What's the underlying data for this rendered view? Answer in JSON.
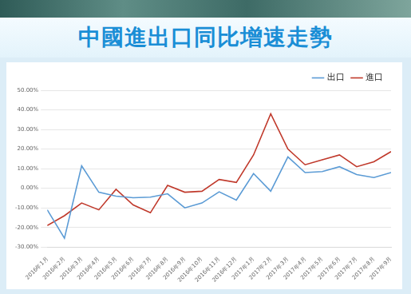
{
  "chart_data": {
    "type": "line",
    "title": "中國進出口同比增速走勢",
    "categories": [
      "2016年1月",
      "2016年2月",
      "2016年3月",
      "2016年4月",
      "2016年5月",
      "2016年6月",
      "2016年7月",
      "2016年8月",
      "2016年9月",
      "2016年10月",
      "2016年11月",
      "2016年12月",
      "2017年1月",
      "2017年2月",
      "2017年3月",
      "2017年4月",
      "2017年5月",
      "2017年6月",
      "2017年7月",
      "2017年8月",
      "2017年9月"
    ],
    "series": [
      {
        "name": "出口",
        "color": "#5b9bd5",
        "values": [
          -11,
          -25.5,
          11.5,
          -2,
          -4,
          -4.8,
          -4.5,
          -2.8,
          -10,
          -7.5,
          -1.8,
          -6,
          7.5,
          -1.5,
          16,
          8,
          8.5,
          11,
          7,
          5.5,
          8
        ]
      },
      {
        "name": "進口",
        "color": "#c0392b",
        "values": [
          -19,
          -14,
          -7.5,
          -11,
          -0.5,
          -8.5,
          -12.5,
          1.5,
          -2,
          -1.5,
          4.5,
          3,
          17,
          38,
          20,
          12,
          14.5,
          17,
          11,
          13.5,
          18.7
        ]
      }
    ],
    "ylim": [
      -30,
      50
    ],
    "yticks": [
      {
        "value": -30,
        "label": "-30.00%"
      },
      {
        "value": -20,
        "label": "-20.00%"
      },
      {
        "value": -10,
        "label": "-10.00%"
      },
      {
        "value": 0,
        "label": "0.00%"
      },
      {
        "value": 10,
        "label": "10.00%"
      },
      {
        "value": 20,
        "label": "20.00%"
      },
      {
        "value": 30,
        "label": "30.00%"
      },
      {
        "value": 40,
        "label": "40.00%"
      },
      {
        "value": 50,
        "label": "50.00%"
      }
    ],
    "grid": true,
    "legend": "top-right"
  }
}
